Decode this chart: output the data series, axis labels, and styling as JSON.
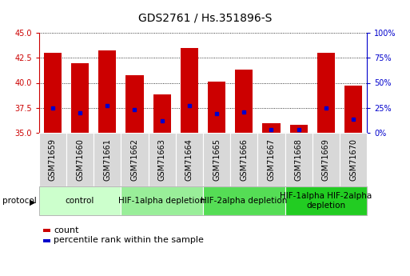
{
  "title": "GDS2761 / Hs.351896-S",
  "samples": [
    "GSM71659",
    "GSM71660",
    "GSM71661",
    "GSM71662",
    "GSM71663",
    "GSM71664",
    "GSM71665",
    "GSM71666",
    "GSM71667",
    "GSM71668",
    "GSM71669",
    "GSM71670"
  ],
  "count_values": [
    43.0,
    42.0,
    43.3,
    40.8,
    38.8,
    43.5,
    40.1,
    41.3,
    35.9,
    35.8,
    43.0,
    39.7
  ],
  "percentile_values": [
    37.5,
    37.0,
    37.7,
    37.3,
    36.2,
    37.7,
    36.9,
    37.1,
    35.3,
    35.3,
    37.5,
    36.3
  ],
  "y_min": 35,
  "y_max": 45,
  "y_ticks": [
    35,
    37.5,
    40,
    42.5,
    45
  ],
  "right_y_ticks": [
    0,
    25,
    50,
    75,
    100
  ],
  "right_y_tick_labels": [
    "0%",
    "25%",
    "50%",
    "75%",
    "100%"
  ],
  "bar_color": "#cc0000",
  "percentile_color": "#0000cc",
  "bar_width": 0.65,
  "protocols": [
    {
      "label": "control",
      "start": 0,
      "end": 2,
      "color": "#ccffcc"
    },
    {
      "label": "HIF-1alpha depletion",
      "start": 3,
      "end": 5,
      "color": "#99ee99"
    },
    {
      "label": "HIF-2alpha depletion",
      "start": 6,
      "end": 8,
      "color": "#55dd55"
    },
    {
      "label": "HIF-1alpha HIF-2alpha\ndepletion",
      "start": 9,
      "end": 11,
      "color": "#22cc22"
    }
  ],
  "left_axis_color": "#cc0000",
  "right_axis_color": "#0000cc",
  "tick_label_bg": "#d8d8d8",
  "title_fontsize": 10,
  "tick_fontsize": 7,
  "legend_fontsize": 8,
  "protocol_fontsize": 7.5
}
